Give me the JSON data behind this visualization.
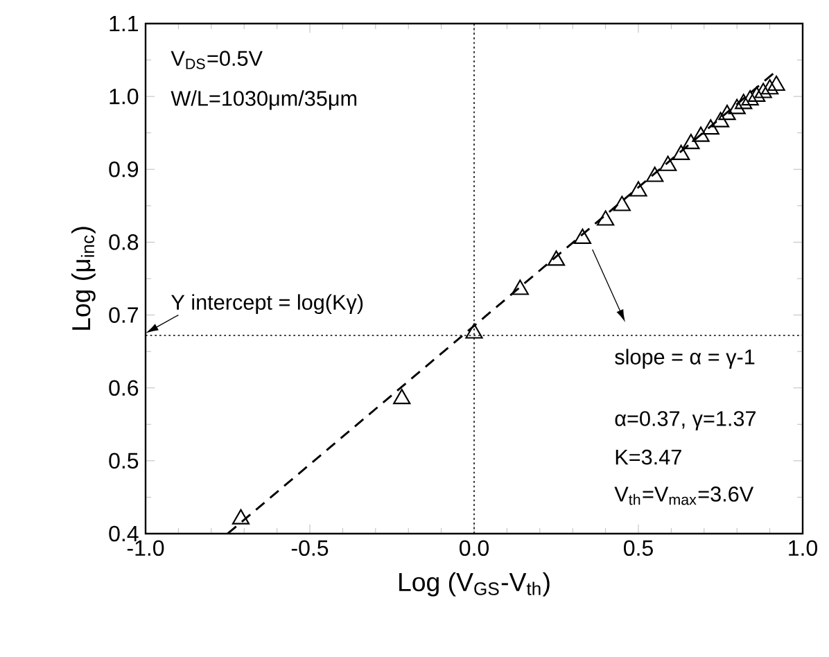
{
  "chart_data": {
    "type": "scatter",
    "xlabel": "Log (V$_{GS}$-V$_{th}$)",
    "ylabel": "Log (μ$_{inc}$)",
    "xlim": [
      -1.0,
      1.0
    ],
    "ylim": [
      0.4,
      1.1
    ],
    "xticks": [
      {
        "value": -1.0,
        "label": "-1.0"
      },
      {
        "value": -0.5,
        "label": "-0.5"
      },
      {
        "value": 0.0,
        "label": "0.0"
      },
      {
        "value": 0.5,
        "label": "0.5"
      },
      {
        "value": 1.0,
        "label": "1.0"
      }
    ],
    "yticks": [
      {
        "value": 0.4,
        "label": "0.4"
      },
      {
        "value": 0.5,
        "label": "0.5"
      },
      {
        "value": 0.6,
        "label": "0.6"
      },
      {
        "value": 0.7,
        "label": "0.7"
      },
      {
        "value": 0.8,
        "label": "0.8"
      },
      {
        "value": 0.9,
        "label": "0.9"
      },
      {
        "value": 1.0,
        "label": "1.0"
      },
      {
        "value": 1.1,
        "label": "1.1"
      }
    ],
    "grid": false,
    "series": [
      {
        "color": "#000000",
        "marker": "triangle",
        "x": [
          -0.71,
          -0.22,
          0.0,
          0.14,
          0.25,
          0.33,
          0.4,
          0.45,
          0.5,
          0.55,
          0.59,
          0.63,
          0.66,
          0.69,
          0.72,
          0.75,
          0.77,
          0.8,
          0.82,
          0.84,
          0.86,
          0.88,
          0.9,
          0.92
        ],
        "values": [
          0.42,
          0.585,
          0.675,
          0.735,
          0.775,
          0.805,
          0.83,
          0.85,
          0.87,
          0.89,
          0.905,
          0.92,
          0.935,
          0.945,
          0.955,
          0.965,
          0.975,
          0.983,
          0.99,
          0.995,
          1.0,
          1.005,
          1.01,
          1.015
        ]
      },
      {
        "type": "line",
        "color": "#000000",
        "marker": "none",
        "line_style": "dashed",
        "x": [
          -0.75,
          0.92
        ],
        "values": [
          0.4,
          1.035
        ]
      }
    ],
    "ref_lines": [
      {
        "axis": "x",
        "value": 0.0,
        "line_style": "dotted",
        "color": "#000000"
      },
      {
        "axis": "y",
        "value": 0.672,
        "line_style": "dotted",
        "color": "#000000"
      }
    ],
    "annotations": [
      "V$_{DS}$=0.5V",
      "W/L=1030μm/35μm",
      "Y intercept = log(Kγ)",
      "slope = α = γ-1",
      "α=0.37, γ=1.37",
      "K=3.47",
      "V$_{th}$=V$_{max}$=3.6V"
    ]
  }
}
